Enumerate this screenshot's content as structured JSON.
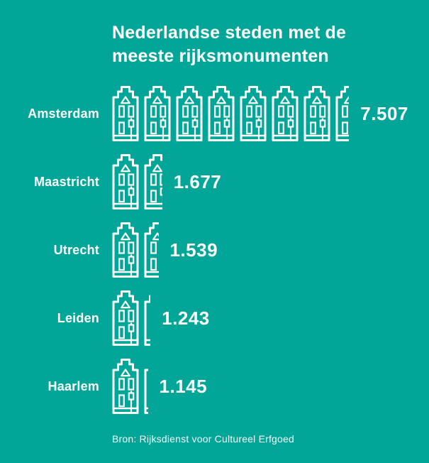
{
  "background_color": "#01A699",
  "text_color": "#FFFFFF",
  "title": "Nederlandse steden met de meeste rijksmonumenten",
  "source": "Bron: Rijksdienst voor Cultureel Erfgoed",
  "icon": "canal-house-icon",
  "chart_data": {
    "type": "pictogram-bar",
    "title": "Nederlandse steden met de meeste rijksmonumenten",
    "categories": [
      "Amsterdam",
      "Maastricht",
      "Utrecht",
      "Leiden",
      "Haarlem"
    ],
    "values": [
      7507,
      1677,
      1539,
      1243,
      1145
    ],
    "value_labels": [
      "7.507",
      "1.677",
      "1.539",
      "1.243",
      "1.145"
    ],
    "unit_per_icon": 1000,
    "legend": "none",
    "grid": "off",
    "orientation": "horizontal",
    "source": "Bron: Rijksdienst voor Cultureel Erfgoed"
  }
}
